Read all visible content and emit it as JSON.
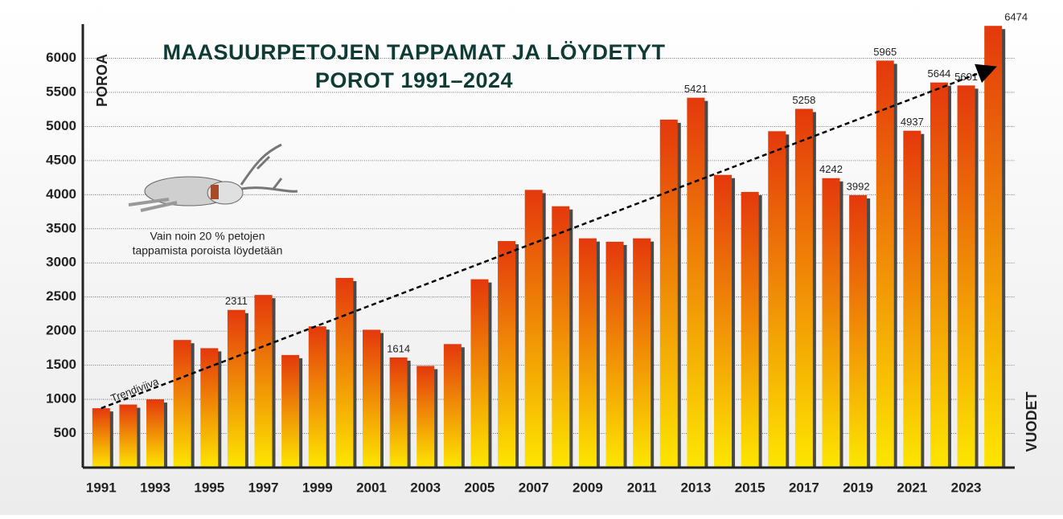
{
  "chart_data": {
    "type": "bar",
    "title": [
      "MAASUURPETOJEN TAPPAMAT JA LÖYDETYT",
      "POROT 1991–2024"
    ],
    "y_label": "POROA",
    "x_label": "VUODET",
    "annotation": [
      "Vain noin 20 % petojen",
      "tappamista poroista löydetään"
    ],
    "categories": [
      "1991",
      null,
      "1993",
      null,
      "1995",
      null,
      "1997",
      null,
      "1999",
      null,
      "2001",
      null,
      "2003",
      null,
      "2005",
      null,
      "2007",
      null,
      "2009",
      null,
      "2011",
      null,
      "2013",
      null,
      "2015",
      null,
      "2017",
      null,
      "2019",
      null,
      "2021",
      null,
      "2023",
      null
    ],
    "values": [
      870,
      924,
      1000,
      1870,
      1750,
      2311,
      2530,
      1650,
      2070,
      2780,
      2020,
      1614,
      1490,
      1810,
      2760,
      3320,
      4070,
      3830,
      3360,
      3310,
      3360,
      5100,
      5421,
      4290,
      4040,
      4930,
      5258,
      4242,
      3992,
      5965,
      4937,
      5644,
      5601,
      6474
    ],
    "value_labels": [
      null,
      null,
      null,
      null,
      null,
      "2311",
      null,
      null,
      null,
      null,
      null,
      "1614",
      null,
      null,
      null,
      null,
      null,
      null,
      null,
      null,
      null,
      null,
      "5421",
      null,
      null,
      null,
      "5258",
      "4242",
      "3992",
      "5965",
      "4937",
      "5644",
      "5601",
      "6474"
    ],
    "gradient": [
      "#e4380c",
      "#fde600"
    ],
    "trendline": {
      "name": "Trendiviiva",
      "values": [
        870,
        5860
      ]
    },
    "ylim": [
      0,
      6500
    ],
    "yticks": [
      500,
      1000,
      1500,
      2000,
      2500,
      3000,
      3500,
      4000,
      4500,
      5000,
      5500,
      6000
    ],
    "grid": true
  }
}
